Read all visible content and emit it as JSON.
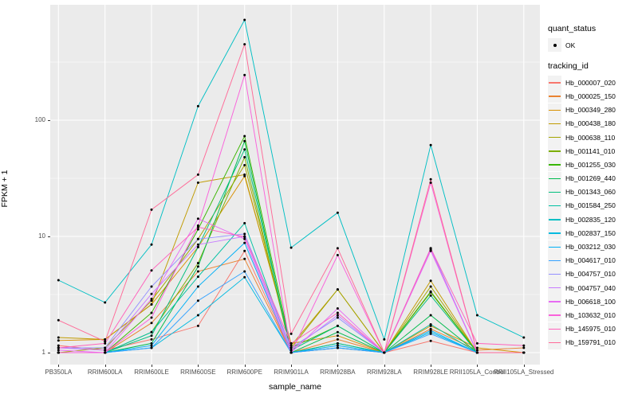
{
  "figure": {
    "panel_bg": "#EBEBEB",
    "grid_color": "#FFFFFF",
    "axis_text_color": "#4D4D4D",
    "tick_color": "#333333",
    "point_color": "#000000"
  },
  "axes": {
    "x_title": "sample_name",
    "y_title": "FPKM + 1",
    "y_tick_labels": [
      "1",
      "10",
      "100"
    ],
    "y_tick_values": [
      1,
      10,
      100
    ]
  },
  "legend": {
    "quant_status_title": "quant_status",
    "quant_status_items": [
      {
        "label": "OK",
        "symbol": "point-icon"
      }
    ],
    "tracking_title": "tracking_id"
  },
  "chart_data": {
    "type": "line",
    "title": "",
    "xlabel": "sample_name",
    "ylabel": "FPKM + 1",
    "y_scale": "log10",
    "ylim": [
      0.79,
      985
    ],
    "grid": "white major gridlines at 1/10/100 and categories, minor at half-decades, on gray panel",
    "legend_position": "right",
    "point_marker": "small black point on every value (quant_status = OK)",
    "categories": [
      "PB350LA",
      "RRIM600LA",
      "RRIM600LE",
      "RRIM600SE",
      "RRIM600PE",
      "RRIM901LA",
      "RRIM928BA",
      "RRIM928LA",
      "RRIM928LE",
      "RRII105LA_Control",
      "RRII105LA_Stressed"
    ],
    "series": [
      {
        "name": "Hb_000007_020",
        "color": "#F8766D",
        "values": [
          1.15,
          1.05,
          1.3,
          1.7,
          7.5,
          1.0,
          1.1,
          1.0,
          1.26,
          1.0,
          1.0
        ]
      },
      {
        "name": "Hb_000025_150",
        "color": "#EA8331",
        "values": [
          1.0,
          1.0,
          1.8,
          5.0,
          6.4,
          1.0,
          1.3,
          1.0,
          1.6,
          1.05,
          1.1
        ]
      },
      {
        "name": "Hb_000349_280",
        "color": "#D89000",
        "values": [
          1.27,
          1.3,
          2.6,
          8.1,
          33,
          1.2,
          1.4,
          1.0,
          1.7,
          1.1,
          1.0
        ]
      },
      {
        "name": "Hb_000438_180",
        "color": "#C09B00",
        "values": [
          1.35,
          1.3,
          2.6,
          29.0,
          34,
          1.15,
          3.5,
          1.0,
          4.15,
          1.0,
          1.0
        ]
      },
      {
        "name": "Hb_000638_110",
        "color": "#A3A500",
        "values": [
          1.0,
          1.1,
          2.8,
          9.5,
          41,
          1.1,
          3.5,
          1.0,
          3.7,
          1.0,
          1.0
        ]
      },
      {
        "name": "Hb_001141_010",
        "color": "#7CAE00",
        "values": [
          1.0,
          1.0,
          1.5,
          5.9,
          48,
          1.0,
          1.2,
          1.0,
          3.3,
          1.0,
          1.0
        ]
      },
      {
        "name": "Hb_001255_030",
        "color": "#39B600",
        "values": [
          1.0,
          1.0,
          2.2,
          11.5,
          73,
          1.1,
          1.7,
          1.0,
          3.35,
          1.0,
          1.0
        ]
      },
      {
        "name": "Hb_001269_440",
        "color": "#00BB4E",
        "values": [
          1.0,
          1.0,
          1.2,
          5.5,
          66,
          1.0,
          1.5,
          1.0,
          2.1,
          1.0,
          1.0
        ]
      },
      {
        "name": "Hb_001343_060",
        "color": "#00BF7D",
        "values": [
          1.0,
          1.0,
          1.4,
          8.1,
          56,
          1.05,
          1.7,
          1.0,
          3.1,
          1.0,
          1.0
        ]
      },
      {
        "name": "Hb_001584_250",
        "color": "#00C1A3",
        "values": [
          1.0,
          1.0,
          1.5,
          4.5,
          13,
          1.0,
          1.2,
          1.0,
          1.75,
          1.0,
          1.0
        ]
      },
      {
        "name": "Hb_002835_120",
        "color": "#00BFC4",
        "values": [
          4.2,
          2.7,
          8.5,
          132,
          730,
          8.0,
          16.0,
          1.3,
          61.0,
          2.1,
          1.35
        ]
      },
      {
        "name": "Hb_002837_150",
        "color": "#00BAE0",
        "values": [
          1.0,
          1.0,
          1.1,
          2.1,
          4.45,
          1.0,
          1.1,
          1.0,
          1.5,
          1.0,
          1.0
        ]
      },
      {
        "name": "Hb_003212_030",
        "color": "#00B0F6",
        "values": [
          1.0,
          1.0,
          1.15,
          3.7,
          8.8,
          1.0,
          1.15,
          1.0,
          1.55,
          1.0,
          1.0
        ]
      },
      {
        "name": "Hb_004617_010",
        "color": "#35A2FF",
        "values": [
          1.0,
          1.0,
          1.1,
          2.8,
          5.0,
          1.0,
          1.1,
          1.0,
          1.45,
          1.0,
          1.0
        ]
      },
      {
        "name": "Hb_004757_010",
        "color": "#9590FF",
        "values": [
          1.1,
          1.1,
          3.7,
          9.5,
          10.5,
          1.1,
          2.0,
          1.0,
          7.9,
          1.0,
          1.0
        ]
      },
      {
        "name": "Hb_004757_040",
        "color": "#C77CFF",
        "values": [
          1.1,
          1.05,
          3.2,
          8.5,
          10.0,
          1.05,
          2.1,
          1.0,
          7.7,
          1.0,
          1.0
        ]
      },
      {
        "name": "Hb_006618_100",
        "color": "#E76BF3",
        "values": [
          1.05,
          1.0,
          2.9,
          14.2,
          9.5,
          1.0,
          2.4,
          1.0,
          7.5,
          1.0,
          1.0
        ]
      },
      {
        "name": "Hb_103632_010",
        "color": "#FA62DB",
        "values": [
          1.0,
          1.0,
          2.0,
          12.4,
          245,
          1.0,
          6.9,
          1.0,
          29.0,
          1.0,
          1.0
        ]
      },
      {
        "name": "Hb_145975_010",
        "color": "#FF62BC",
        "values": [
          1.1,
          1.2,
          5.1,
          12.0,
          9.9,
          1.2,
          2.2,
          1.0,
          7.9,
          1.2,
          1.15
        ]
      },
      {
        "name": "Hb_159791_010",
        "color": "#FF6A98",
        "values": [
          1.9,
          1.25,
          17.0,
          34.0,
          450,
          1.45,
          7.9,
          1.0,
          31.0,
          1.0,
          1.0
        ]
      }
    ]
  }
}
